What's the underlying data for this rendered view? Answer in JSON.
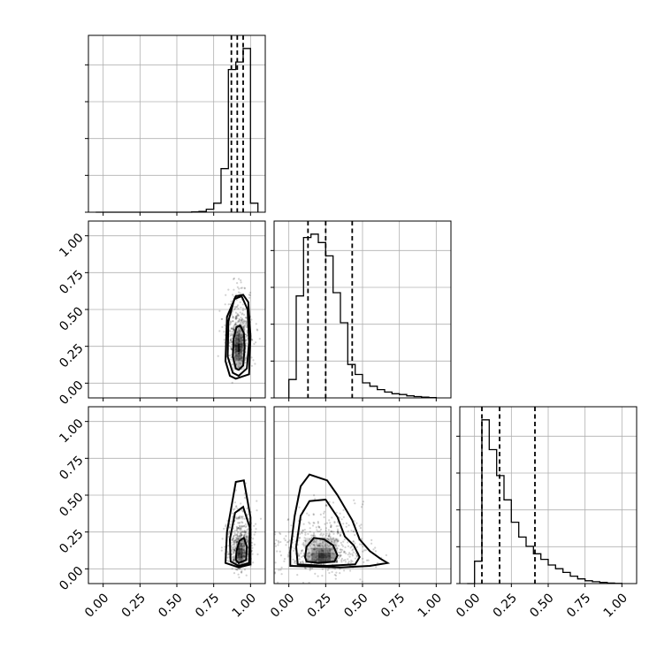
{
  "chart_data": {
    "type": "corner",
    "parameters": 3,
    "axis_range": [
      -0.1,
      1.1
    ],
    "ticks": [
      0,
      0.25,
      0.5,
      0.75,
      1.0
    ],
    "tick_labels": [
      "0.00",
      "0.25",
      "0.50",
      "0.75",
      "1.00"
    ],
    "grid": true,
    "histograms": [
      {
        "bins": [
          -0.05,
          0.0,
          0.05,
          0.1,
          0.15,
          0.2,
          0.25,
          0.3,
          0.35,
          0.4,
          0.45,
          0.5,
          0.55,
          0.6,
          0.65,
          0.7,
          0.75,
          0.8,
          0.85,
          0.9,
          0.95,
          1.0,
          1.05
        ],
        "values": [
          0,
          0,
          0,
          0,
          0,
          0,
          0,
          0,
          0,
          0,
          0,
          0,
          0,
          0.002,
          0.005,
          0.02,
          0.06,
          0.29,
          0.95,
          1.0,
          1.09,
          0.06
        ],
        "quantiles": [
          0.87,
          0.91,
          0.95
        ]
      },
      {
        "bins": [
          0.0,
          0.05,
          0.1,
          0.15,
          0.2,
          0.25,
          0.3,
          0.35,
          0.4,
          0.45,
          0.5,
          0.55,
          0.6,
          0.65,
          0.7,
          0.75,
          0.8,
          0.85,
          0.9,
          0.95,
          1.0
        ],
        "values": [
          0.11,
          0.61,
          0.96,
          0.98,
          0.93,
          0.85,
          0.63,
          0.45,
          0.2,
          0.14,
          0.09,
          0.07,
          0.05,
          0.035,
          0.025,
          0.02,
          0.012,
          0.008,
          0.004,
          0.002
        ],
        "quantiles": [
          0.13,
          0.25,
          0.43
        ]
      },
      {
        "bins": [
          -0.05,
          0.0,
          0.05,
          0.1,
          0.15,
          0.2,
          0.25,
          0.3,
          0.35,
          0.4,
          0.45,
          0.5,
          0.55,
          0.6,
          0.65,
          0.7,
          0.75,
          0.8,
          0.85,
          0.9,
          0.95,
          1.0
        ],
        "values": [
          0,
          0.12,
          0.88,
          0.72,
          0.58,
          0.45,
          0.33,
          0.25,
          0.2,
          0.16,
          0.13,
          0.1,
          0.08,
          0.06,
          0.04,
          0.025,
          0.015,
          0.01,
          0.006,
          0.003,
          0.001
        ],
        "quantiles": [
          0.05,
          0.17,
          0.41
        ]
      }
    ],
    "density_2d": [
      {
        "row": 1,
        "col": 0,
        "center": [
          0.92,
          0.24
        ],
        "spread": [
          0.045,
          0.17
        ],
        "contours": [
          [
            [
              0.92,
              0.09
            ],
            [
              0.95,
              0.12
            ],
            [
              0.96,
              0.24
            ],
            [
              0.955,
              0.34
            ],
            [
              0.93,
              0.39
            ],
            [
              0.905,
              0.38
            ],
            [
              0.885,
              0.3
            ],
            [
              0.88,
              0.18
            ],
            [
              0.9,
              0.1
            ]
          ],
          [
            [
              0.92,
              0.05
            ],
            [
              0.975,
              0.1
            ],
            [
              0.99,
              0.28
            ],
            [
              0.98,
              0.5
            ],
            [
              0.94,
              0.59
            ],
            [
              0.89,
              0.57
            ],
            [
              0.85,
              0.42
            ],
            [
              0.845,
              0.18
            ],
            [
              0.88,
              0.07
            ]
          ],
          [
            [
              0.9,
              0.03
            ],
            [
              0.99,
              0.06
            ],
            [
              1.0,
              0.32
            ],
            [
              0.985,
              0.55
            ],
            [
              0.95,
              0.6
            ],
            [
              0.9,
              0.59
            ],
            [
              0.84,
              0.45
            ],
            [
              0.83,
              0.15
            ],
            [
              0.86,
              0.05
            ]
          ]
        ]
      },
      {
        "row": 2,
        "col": 0,
        "center": [
          0.93,
          0.1
        ],
        "spread": [
          0.045,
          0.15
        ],
        "contours": [
          [
            [
              0.92,
              0.04
            ],
            [
              0.97,
              0.06
            ],
            [
              0.975,
              0.15
            ],
            [
              0.955,
              0.21
            ],
            [
              0.925,
              0.19
            ],
            [
              0.905,
              0.12
            ],
            [
              0.9,
              0.06
            ]
          ],
          [
            [
              0.92,
              0.02
            ],
            [
              0.99,
              0.04
            ],
            [
              0.995,
              0.28
            ],
            [
              0.95,
              0.42
            ],
            [
              0.895,
              0.38
            ],
            [
              0.86,
              0.2
            ],
            [
              0.865,
              0.05
            ]
          ],
          [
            [
              0.92,
              0.01
            ],
            [
              1.0,
              0.03
            ],
            [
              1.0,
              0.35
            ],
            [
              0.955,
              0.6
            ],
            [
              0.9,
              0.59
            ],
            [
              0.84,
              0.25
            ],
            [
              0.83,
              0.04
            ]
          ]
        ]
      },
      {
        "row": 2,
        "col": 1,
        "center": [
          0.23,
          0.08
        ],
        "spread": [
          0.15,
          0.15
        ],
        "contours": [
          [
            [
              0.12,
              0.05
            ],
            [
              0.2,
              0.04
            ],
            [
              0.31,
              0.05
            ],
            [
              0.33,
              0.09
            ],
            [
              0.3,
              0.16
            ],
            [
              0.24,
              0.2
            ],
            [
              0.17,
              0.21
            ],
            [
              0.12,
              0.15
            ],
            [
              0.11,
              0.08
            ]
          ],
          [
            [
              0.06,
              0.03
            ],
            [
              0.25,
              0.02
            ],
            [
              0.45,
              0.03
            ],
            [
              0.48,
              0.08
            ],
            [
              0.44,
              0.16
            ],
            [
              0.38,
              0.22
            ],
            [
              0.33,
              0.35
            ],
            [
              0.25,
              0.47
            ],
            [
              0.14,
              0.46
            ],
            [
              0.08,
              0.36
            ],
            [
              0.05,
              0.15
            ]
          ],
          [
            [
              0.01,
              0.02
            ],
            [
              0.35,
              0.01
            ],
            [
              0.55,
              0.02
            ],
            [
              0.67,
              0.04
            ],
            [
              0.62,
              0.07
            ],
            [
              0.55,
              0.12
            ],
            [
              0.48,
              0.2
            ],
            [
              0.43,
              0.33
            ],
            [
              0.33,
              0.5
            ],
            [
              0.26,
              0.6
            ],
            [
              0.14,
              0.64
            ],
            [
              0.08,
              0.56
            ],
            [
              0.04,
              0.36
            ],
            [
              0.01,
              0.12
            ]
          ]
        ]
      }
    ]
  }
}
